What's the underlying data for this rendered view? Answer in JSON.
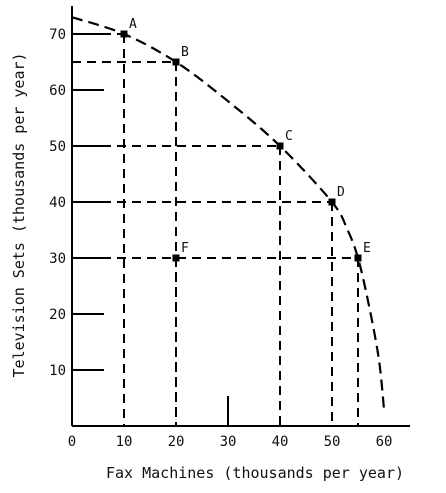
{
  "chart_data": {
    "type": "line",
    "title": "",
    "xlabel": "Fax Machines (thousands per year)",
    "ylabel": "Television Sets (thousands per year)",
    "xlim": [
      0,
      65
    ],
    "ylim": [
      0,
      75
    ],
    "x_ticks": [
      0,
      10,
      20,
      30,
      40,
      50,
      60
    ],
    "y_ticks": [
      10,
      20,
      30,
      40,
      50,
      60,
      70
    ],
    "grid": false,
    "curve": {
      "style": "dashed",
      "x": [
        0,
        10,
        20,
        30,
        40,
        50,
        53,
        55,
        57,
        59,
        60
      ],
      "y": [
        73,
        70,
        65,
        58,
        50,
        40,
        35,
        30,
        22,
        12,
        3
      ]
    },
    "points": [
      {
        "label": "A",
        "x": 10,
        "y": 70,
        "on_curve": true
      },
      {
        "label": "B",
        "x": 20,
        "y": 65,
        "on_curve": true
      },
      {
        "label": "C",
        "x": 40,
        "y": 50,
        "on_curve": true
      },
      {
        "label": "D",
        "x": 50,
        "y": 40,
        "on_curve": true
      },
      {
        "label": "E",
        "x": 55,
        "y": 30,
        "on_curve": true
      },
      {
        "label": "F",
        "x": 20,
        "y": 30,
        "on_curve": false
      }
    ]
  }
}
